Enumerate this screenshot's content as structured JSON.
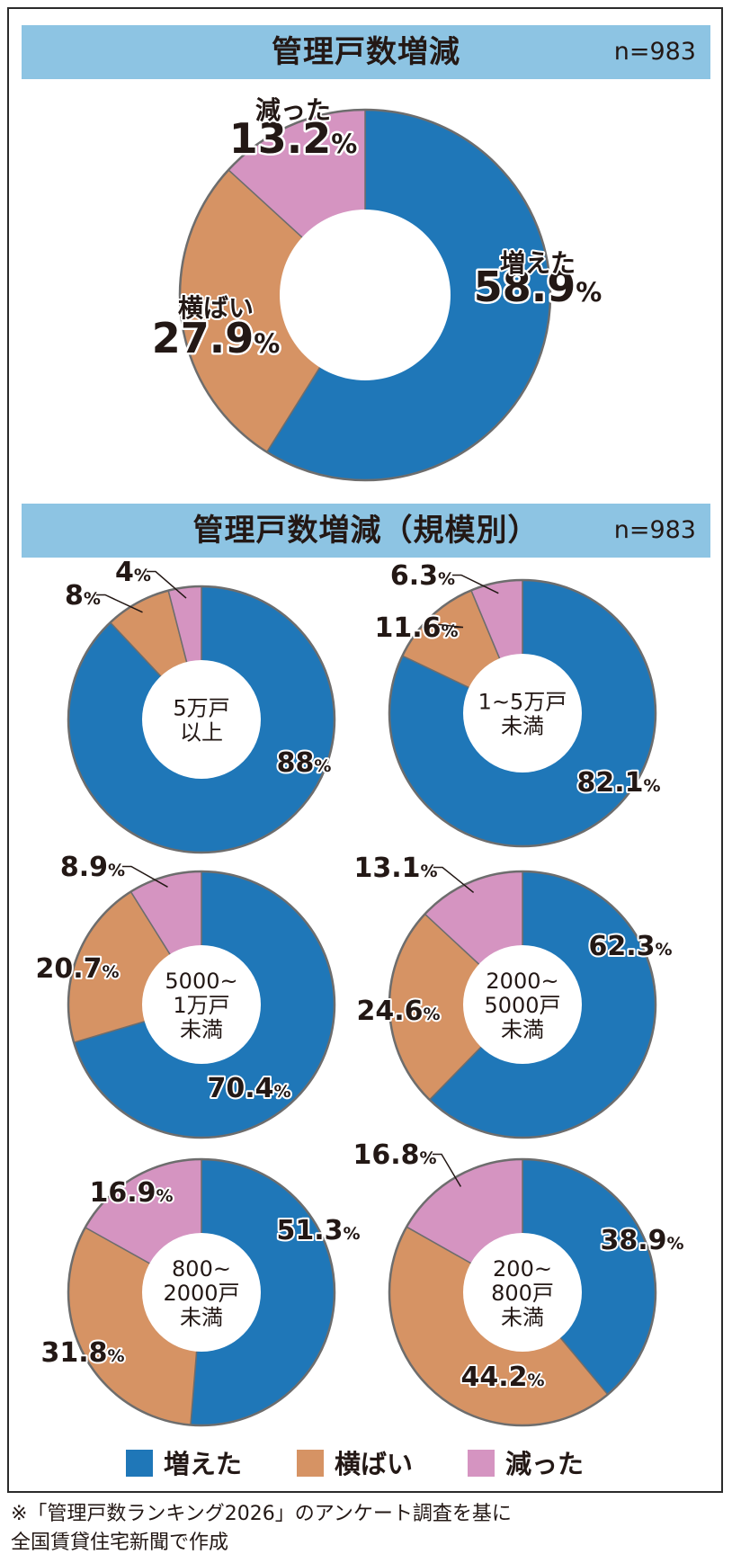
{
  "panel1": {
    "title": "管理戸数増減",
    "n": "n=983"
  },
  "panel2": {
    "title": "管理戸数増減（規模別）",
    "n": "n=983"
  },
  "colors": {
    "increase": "#1f77b8",
    "flat": "#d69364",
    "decrease": "#d594c1"
  },
  "legend": [
    {
      "label": "増えた",
      "color": "#1f77b8"
    },
    {
      "label": "横ばい",
      "color": "#d69364"
    },
    {
      "label": "減った",
      "color": "#d594c1"
    }
  ],
  "chart_data": [
    {
      "type": "pie",
      "title": "管理戸数増減",
      "center_label": [],
      "slices": [
        {
          "name": "増えた",
          "value": 58.9,
          "label": "58.9%"
        },
        {
          "name": "横ばい",
          "value": 27.9,
          "label": "27.9%"
        },
        {
          "name": "減った",
          "value": 13.2,
          "label": "13.2%"
        }
      ]
    },
    {
      "type": "pie",
      "center_label": [
        "5万戸",
        "以上"
      ],
      "slices": [
        {
          "name": "増えた",
          "value": 88,
          "label": "88%"
        },
        {
          "name": "横ばい",
          "value": 8,
          "label": "8%"
        },
        {
          "name": "減った",
          "value": 4,
          "label": "4%"
        }
      ]
    },
    {
      "type": "pie",
      "center_label": [
        "1~5万戸",
        "未満"
      ],
      "slices": [
        {
          "name": "増えた",
          "value": 82.1,
          "label": "82.1%"
        },
        {
          "name": "横ばい",
          "value": 11.6,
          "label": "11.6%"
        },
        {
          "name": "減った",
          "value": 6.3,
          "label": "6.3%"
        }
      ]
    },
    {
      "type": "pie",
      "center_label": [
        "5000~",
        "1万戸",
        "未満"
      ],
      "slices": [
        {
          "name": "増えた",
          "value": 70.4,
          "label": "70.4%"
        },
        {
          "name": "横ばい",
          "value": 20.7,
          "label": "20.7%"
        },
        {
          "name": "減った",
          "value": 8.9,
          "label": "8.9%"
        }
      ]
    },
    {
      "type": "pie",
      "center_label": [
        "2000~",
        "5000戸",
        "未満"
      ],
      "slices": [
        {
          "name": "増えた",
          "value": 62.3,
          "label": "62.3%"
        },
        {
          "name": "横ばい",
          "value": 24.6,
          "label": "24.6%"
        },
        {
          "name": "減った",
          "value": 13.1,
          "label": "13.1%"
        }
      ]
    },
    {
      "type": "pie",
      "center_label": [
        "800~",
        "2000戸",
        "未満"
      ],
      "slices": [
        {
          "name": "増えた",
          "value": 51.3,
          "label": "51.3%"
        },
        {
          "name": "横ばい",
          "value": 31.8,
          "label": "31.8%"
        },
        {
          "name": "減った",
          "value": 16.9,
          "label": "16.9%"
        }
      ]
    },
    {
      "type": "pie",
      "center_label": [
        "200~",
        "800戸",
        "未満"
      ],
      "slices": [
        {
          "name": "増えた",
          "value": 38.9,
          "label": "38.9%"
        },
        {
          "name": "横ばい",
          "value": 44.2,
          "label": "44.2%"
        },
        {
          "name": "減った",
          "value": 16.8,
          "label": "16.8%"
        }
      ]
    }
  ],
  "footnote": {
    "line1": "※「管理戸数ランキング2026」のアンケート調査を基に",
    "line2": "全国賃貸住宅新聞で作成"
  }
}
